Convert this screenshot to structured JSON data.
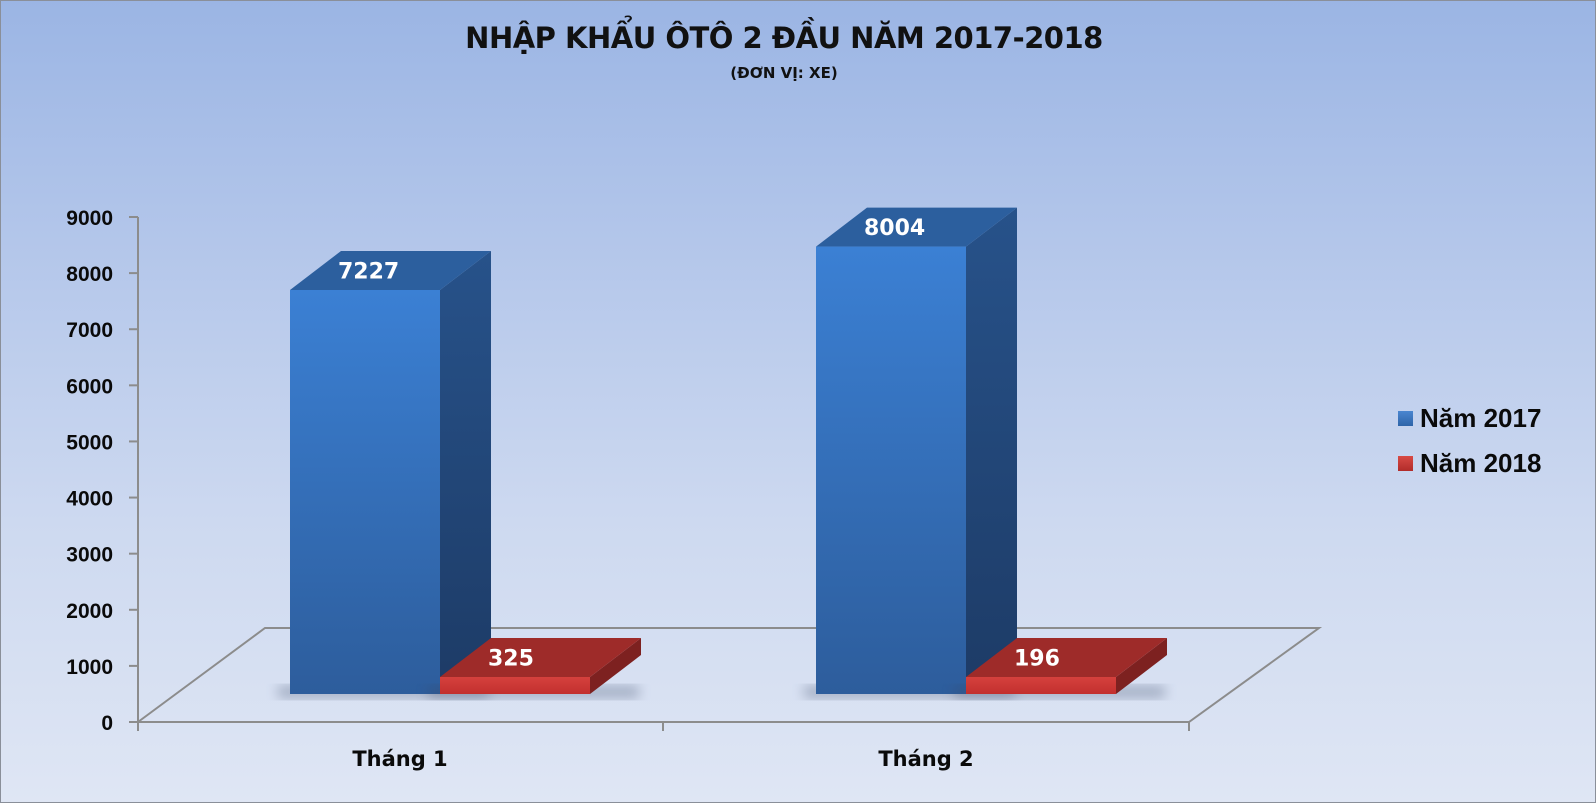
{
  "title": "NHẬP KHẨU ÔTÔ 2 ĐẦU NĂM 2017-2018",
  "subtitle": "(ĐƠN VỊ: XE)",
  "colors": {
    "series_2017": "#3a7acb",
    "series_2017_top": "#2c5f9e",
    "series_2017_side": "#244c80",
    "series_2018": "#c93a37",
    "series_2018_top": "#9e2b29",
    "series_2018_side": "#7d2120"
  },
  "legend": [
    {
      "label": "Năm 2017",
      "color": "#3a7acb"
    },
    {
      "label": "Năm 2018",
      "color": "#c93a37"
    }
  ],
  "chart_data": {
    "type": "bar",
    "title": "NHẬP KHẨU ÔTÔ 2 ĐẦU NĂM 2017-2018",
    "subtitle": "(ĐƠN VỊ: XE)",
    "categories": [
      "Tháng 1",
      "Tháng 2"
    ],
    "series": [
      {
        "name": "Năm 2017",
        "values": [
          7227,
          8004
        ]
      },
      {
        "name": "Năm 2018",
        "values": [
          325,
          196
        ]
      }
    ],
    "xlabel": "",
    "ylabel": "",
    "ylim": [
      0,
      9000
    ],
    "yticks": [
      "0",
      "1000",
      "2000",
      "3000",
      "4000",
      "5000",
      "6000",
      "7000",
      "8000",
      "9000"
    ],
    "grid": false,
    "legend_position": "right",
    "style": "3d-clustered-column",
    "data_labels": [
      "7227",
      "325",
      "8004",
      "196"
    ]
  }
}
